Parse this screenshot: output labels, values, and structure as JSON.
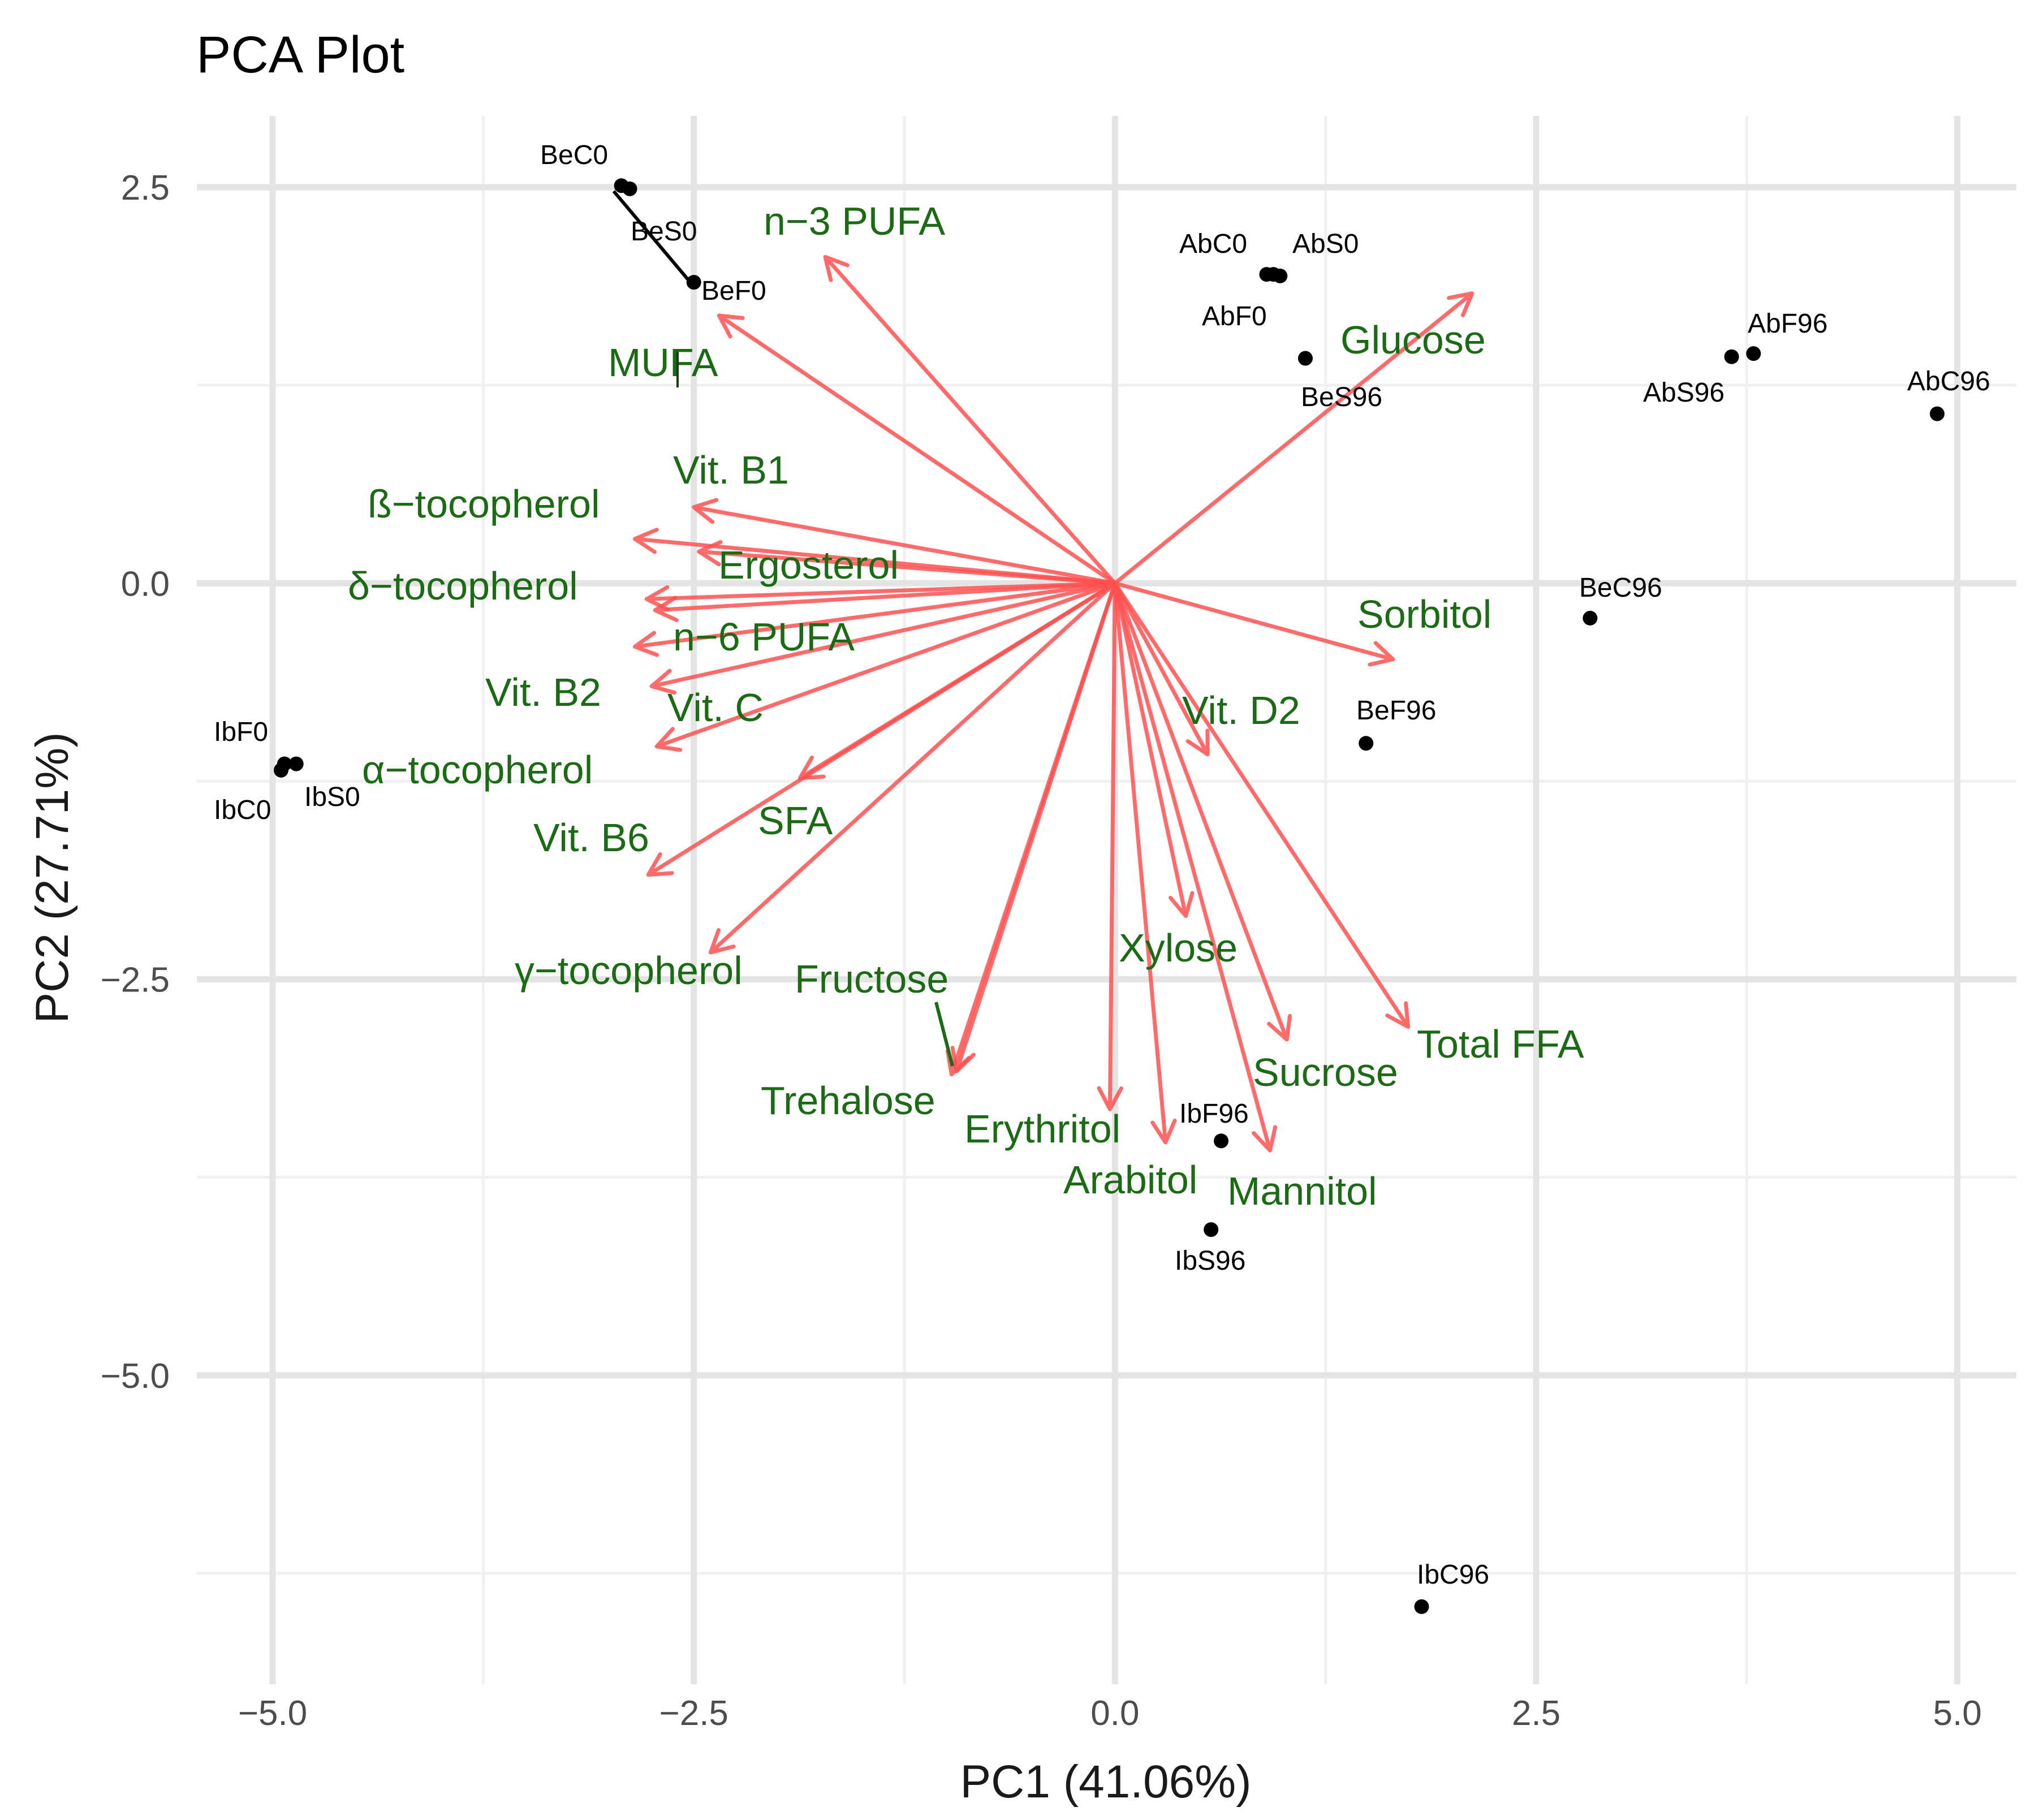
{
  "chart_data": {
    "type": "scatter",
    "subtype": "pca-biplot",
    "title": "PCA Plot",
    "xlabel": "PC1 (41.06%)",
    "ylabel": "PC2 (27.71%)",
    "xlim": [
      -5.45,
      5.35
    ],
    "ylim": [
      -6.95,
      2.95
    ],
    "x_ticks": [
      -5.0,
      -2.5,
      0.0,
      2.5,
      5.0
    ],
    "x_tick_labels": [
      "−5.0",
      "−2.5",
      "0.0",
      "2.5",
      "5.0"
    ],
    "y_ticks": [
      2.5,
      0.0,
      -2.5,
      -5.0
    ],
    "y_tick_labels": [
      "2.5",
      "0.0",
      "−2.5",
      "−5.0"
    ],
    "x_minor": [
      -3.75,
      -1.25,
      1.25,
      3.75
    ],
    "y_minor": [
      1.25,
      -1.25,
      -3.75,
      -6.25
    ],
    "grid": true,
    "arrow_color": "#ff5050",
    "label_color": "#1b6a14",
    "points": [
      {
        "label": "BeC0",
        "x": -2.93,
        "y": 2.51
      },
      {
        "label": "BeS0",
        "x": -2.88,
        "y": 2.49
      },
      {
        "label": "BeF0",
        "x": -2.5,
        "y": 1.9
      },
      {
        "label": "AbC0",
        "x": 0.9,
        "y": 1.95
      },
      {
        "label": "AbS0",
        "x": 0.98,
        "y": 1.94
      },
      {
        "label": "AbF0",
        "x": 0.94,
        "y": 1.95
      },
      {
        "label": "BeS96",
        "x": 1.13,
        "y": 1.42
      },
      {
        "label": "AbF96",
        "x": 3.79,
        "y": 1.45
      },
      {
        "label": "AbS96",
        "x": 3.66,
        "y": 1.43
      },
      {
        "label": "AbC96",
        "x": 4.88,
        "y": 1.07
      },
      {
        "label": "BeC96",
        "x": 2.82,
        "y": -0.22
      },
      {
        "label": "BeF96",
        "x": 1.49,
        "y": -1.01
      },
      {
        "label": "IbF0",
        "x": -4.93,
        "y": -1.14
      },
      {
        "label": "IbC0",
        "x": -4.95,
        "y": -1.18
      },
      {
        "label": "IbS0",
        "x": -4.86,
        "y": -1.14
      },
      {
        "label": "IbF96",
        "x": 0.63,
        "y": -3.52
      },
      {
        "label": "IbS96",
        "x": 0.57,
        "y": -4.08
      },
      {
        "label": "IbC96",
        "x": 1.82,
        "y": -6.46
      }
    ],
    "loadings": [
      {
        "label": "n−3 PUFA",
        "x": -1.72,
        "y": 2.06
      },
      {
        "label": "MUFA",
        "x": -2.35,
        "y": 1.69
      },
      {
        "label": "Glucose",
        "x": 2.12,
        "y": 1.83
      },
      {
        "label": "Vit. B1",
        "x": -2.5,
        "y": 0.48
      },
      {
        "label": "ß−tocopherol",
        "x": -2.85,
        "y": 0.28
      },
      {
        "label": "Ergosterol",
        "x": -2.47,
        "y": 0.2
      },
      {
        "label": "δ−tocopherol",
        "x": -2.78,
        "y": -0.1
      },
      {
        "label": "n−6 PUFA",
        "x": -2.73,
        "y": -0.17
      },
      {
        "label": "Vit. B2",
        "x": -2.85,
        "y": -0.4
      },
      {
        "label": "Vit. C",
        "x": -2.75,
        "y": -0.65
      },
      {
        "label": "α−tocopherol",
        "x": -2.72,
        "y": -1.03
      },
      {
        "label": "SFA",
        "x": -1.87,
        "y": -1.23
      },
      {
        "label": "Vit. B6",
        "x": -2.77,
        "y": -1.84
      },
      {
        "label": "γ−tocopherol",
        "x": -2.4,
        "y": -2.33
      },
      {
        "label": "Sorbitol",
        "x": 1.65,
        "y": -0.48
      },
      {
        "label": "Vit. D2",
        "x": 0.55,
        "y": -1.08
      },
      {
        "label": "Xylose",
        "x": 0.42,
        "y": -2.1
      },
      {
        "label": "Total FFA",
        "x": 1.74,
        "y": -2.8
      },
      {
        "label": "Sucrose",
        "x": 1.02,
        "y": -2.88
      },
      {
        "label": "Fructose",
        "x": -0.94,
        "y": -3.08
      },
      {
        "label": "Trehalose",
        "x": -0.97,
        "y": -3.1
      },
      {
        "label": "Erythritol",
        "x": -0.03,
        "y": -3.32
      },
      {
        "label": "Arabitol",
        "x": 0.3,
        "y": -3.53
      },
      {
        "label": "Mannitol",
        "x": 0.92,
        "y": -3.58
      }
    ]
  }
}
